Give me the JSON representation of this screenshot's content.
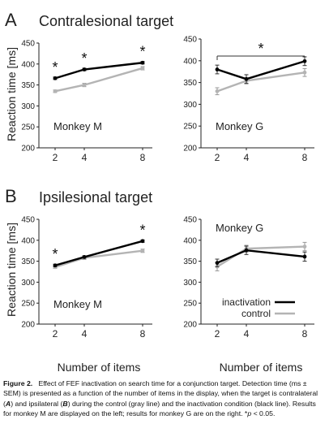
{
  "panels": [
    {
      "letter": "A",
      "title": "Contralesional target"
    },
    {
      "letter": "B",
      "title": "Ipsilesional target"
    }
  ],
  "ylabel": "Reaction time [ms]",
  "xlabel": "Number of items",
  "legend": {
    "items": [
      "inactivation",
      "control"
    ]
  },
  "caption": {
    "label": "Figure 2.",
    "text_1": "Effect of FEF inactivation on search time for a conjunction target. Detection time (ms ± SEM) is presented as a function of the number of items in the display, when the target is contralateral (",
    "A": "A",
    "text_2": ") and ipsilateral (",
    "B": "B",
    "text_3": ") during the control (gray line) and the inactivation condition (black line). Results for monkey M are displayed on the left; results for monkey G are on the right. *",
    "p": "p",
    "text_4": " < 0.05."
  },
  "colors": {
    "inactivation": "#000000",
    "control": "#b4b4b4",
    "axis": "#222222",
    "title": "#222222"
  },
  "chart_data": [
    {
      "type": "line",
      "panel": "A",
      "monkey": "Monkey M",
      "x": [
        2,
        4,
        8
      ],
      "ylim": [
        200,
        450
      ],
      "yticks": [
        200,
        250,
        300,
        350,
        400,
        450
      ],
      "series": [
        {
          "name": "inactivation",
          "values": [
            366,
            387,
            403
          ],
          "err": [
            3,
            3,
            3
          ]
        },
        {
          "name": "control",
          "values": [
            335,
            350,
            390
          ],
          "err": [
            3,
            4,
            4
          ]
        }
      ],
      "stars": [
        2,
        4,
        8
      ]
    },
    {
      "type": "line",
      "panel": "A",
      "monkey": "Monkey G",
      "x": [
        2,
        4,
        8
      ],
      "ylim": [
        200,
        450
      ],
      "yticks": [
        200,
        250,
        300,
        350,
        400,
        450
      ],
      "series": [
        {
          "name": "inactivation",
          "values": [
            380,
            358,
            399
          ],
          "err": [
            10,
            10,
            10
          ]
        },
        {
          "name": "control",
          "values": [
            330,
            354,
            373
          ],
          "err": [
            8,
            7,
            9
          ]
        }
      ],
      "bracket": {
        "from": 2,
        "to": 8
      }
    },
    {
      "type": "line",
      "panel": "B",
      "monkey": "Monkey M",
      "x": [
        2,
        4,
        8
      ],
      "ylim": [
        200,
        450
      ],
      "yticks": [
        200,
        250,
        300,
        350,
        400,
        450
      ],
      "series": [
        {
          "name": "inactivation",
          "values": [
            340,
            360,
            398
          ],
          "err": [
            3,
            3,
            3
          ]
        },
        {
          "name": "control",
          "values": [
            336,
            358,
            375
          ],
          "err": [
            3,
            4,
            4
          ]
        }
      ],
      "stars": [
        2,
        8
      ]
    },
    {
      "type": "line",
      "panel": "B",
      "monkey": "Monkey G",
      "x": [
        2,
        4,
        8
      ],
      "ylim": [
        200,
        450
      ],
      "yticks": [
        200,
        250,
        300,
        350,
        400,
        450
      ],
      "series": [
        {
          "name": "inactivation",
          "values": [
            346,
            376,
            361
          ],
          "err": [
            9,
            10,
            11
          ]
        },
        {
          "name": "control",
          "values": [
            337,
            380,
            385
          ],
          "err": [
            10,
            8,
            10
          ]
        }
      ]
    }
  ]
}
